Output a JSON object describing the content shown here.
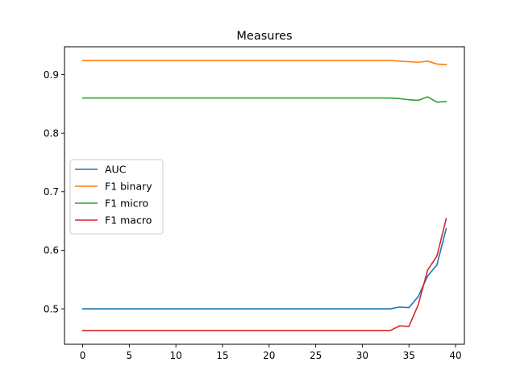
{
  "chart_data": {
    "type": "line",
    "title": "Measures",
    "xlabel": "",
    "ylabel": "",
    "xlim": [
      -1.95,
      40.95
    ],
    "ylim": [
      0.4395,
      0.9475
    ],
    "xticks": [
      0,
      5,
      10,
      15,
      20,
      25,
      30,
      35,
      40
    ],
    "yticks": [
      0.5,
      0.6,
      0.7,
      0.8,
      0.9
    ],
    "grid": false,
    "legend": "center-left",
    "x": [
      0,
      1,
      2,
      3,
      4,
      5,
      6,
      7,
      8,
      9,
      10,
      11,
      12,
      13,
      14,
      15,
      16,
      17,
      18,
      19,
      20,
      21,
      22,
      23,
      24,
      25,
      26,
      27,
      28,
      29,
      30,
      31,
      32,
      33,
      34,
      35,
      36,
      37,
      38,
      39
    ],
    "series": [
      {
        "name": "AUC",
        "color": "#1f77b4",
        "values": [
          0.5,
          0.5,
          0.5,
          0.5,
          0.5,
          0.5,
          0.5,
          0.5,
          0.5,
          0.5,
          0.5,
          0.5,
          0.5,
          0.5,
          0.5,
          0.5,
          0.5,
          0.5,
          0.5,
          0.5,
          0.5,
          0.5,
          0.5,
          0.5,
          0.5,
          0.5,
          0.5,
          0.5,
          0.5,
          0.5,
          0.5,
          0.5,
          0.5,
          0.5,
          0.503,
          0.502,
          0.521,
          0.556,
          0.575,
          0.637
        ]
      },
      {
        "name": "F1 binary",
        "color": "#ff7f0e",
        "values": [
          0.924,
          0.924,
          0.924,
          0.924,
          0.924,
          0.924,
          0.924,
          0.924,
          0.924,
          0.924,
          0.924,
          0.924,
          0.924,
          0.924,
          0.924,
          0.924,
          0.924,
          0.924,
          0.924,
          0.924,
          0.924,
          0.924,
          0.924,
          0.924,
          0.924,
          0.924,
          0.924,
          0.924,
          0.924,
          0.924,
          0.924,
          0.924,
          0.924,
          0.924,
          0.923,
          0.922,
          0.921,
          0.923,
          0.918,
          0.917
        ]
      },
      {
        "name": "F1 micro",
        "color": "#2ca02c",
        "values": [
          0.86,
          0.86,
          0.86,
          0.86,
          0.86,
          0.86,
          0.86,
          0.86,
          0.86,
          0.86,
          0.86,
          0.86,
          0.86,
          0.86,
          0.86,
          0.86,
          0.86,
          0.86,
          0.86,
          0.86,
          0.86,
          0.86,
          0.86,
          0.86,
          0.86,
          0.86,
          0.86,
          0.86,
          0.86,
          0.86,
          0.86,
          0.86,
          0.86,
          0.86,
          0.859,
          0.857,
          0.856,
          0.862,
          0.853,
          0.854
        ]
      },
      {
        "name": "F1 macro",
        "color": "#d62728",
        "values": [
          0.463,
          0.463,
          0.463,
          0.463,
          0.463,
          0.463,
          0.463,
          0.463,
          0.463,
          0.463,
          0.463,
          0.463,
          0.463,
          0.463,
          0.463,
          0.463,
          0.463,
          0.463,
          0.463,
          0.463,
          0.463,
          0.463,
          0.463,
          0.463,
          0.463,
          0.463,
          0.463,
          0.463,
          0.463,
          0.463,
          0.463,
          0.463,
          0.463,
          0.463,
          0.471,
          0.47,
          0.507,
          0.566,
          0.59,
          0.654
        ]
      }
    ]
  }
}
